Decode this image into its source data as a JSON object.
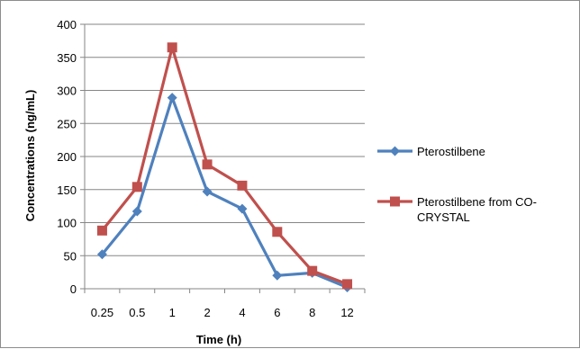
{
  "chart_data": {
    "type": "line",
    "categories": [
      "0.25",
      "0.5",
      "1",
      "2",
      "4",
      "6",
      "8",
      "12"
    ],
    "series": [
      {
        "name": "Pterostilbene",
        "values": [
          52,
          117,
          289,
          147,
          121,
          20,
          24,
          2
        ],
        "color": "#4f81bd",
        "marker": "diamond"
      },
      {
        "name": "Pterostilbene from CO-CRYSTAL",
        "legend_lines": [
          "Pterostilbene from CO-",
          "CRYSTAL"
        ],
        "values": [
          88,
          154,
          365,
          188,
          156,
          86,
          27,
          7
        ],
        "color": "#c0504d",
        "marker": "square"
      }
    ],
    "xlabel": "Time (h)",
    "ylabel": "Concentrations (ng/mL)",
    "ylim": [
      0,
      400
    ],
    "yticks": [
      "0",
      "50",
      "100",
      "150",
      "200",
      "250",
      "300",
      "350",
      "400"
    ],
    "grid": true,
    "legend_position": "right"
  }
}
